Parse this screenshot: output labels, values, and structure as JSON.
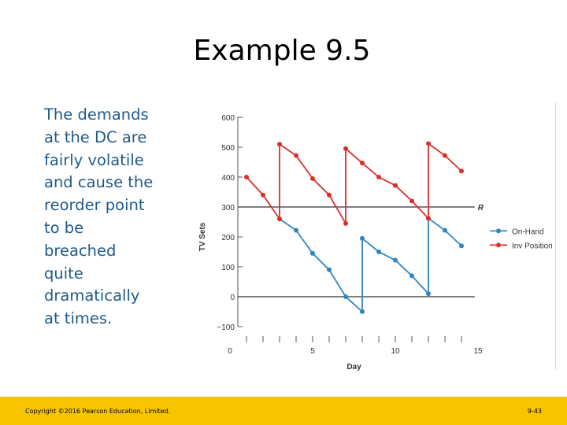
{
  "slide": {
    "title": "Example 9.5",
    "body": "The demands at the DC are fairly volatile and cause the reorder point to be breached quite dramatically at times.",
    "footer_left": "Copyright ©2016 Pearson Education, Limited.",
    "footer_right": "9-43"
  },
  "chart_data": {
    "type": "line",
    "xlabel": "Day",
    "ylabel": "TV Sets",
    "xlim": [
      0,
      15
    ],
    "ylim": [
      -100,
      600
    ],
    "x_ticks": [
      0,
      5,
      10,
      15
    ],
    "y_ticks": [
      600,
      500,
      400,
      300,
      200,
      100,
      0,
      -100
    ],
    "reference_line": {
      "label": "R",
      "value": 300
    },
    "zero_line": 0,
    "legend": [
      "On-Hand",
      "Inv Position"
    ],
    "legend_position": "right",
    "series": [
      {
        "name": "On-Hand",
        "color": "#2e86c1",
        "points": [
          [
            3,
            260
          ],
          [
            4,
            222
          ],
          [
            5,
            145
          ],
          [
            6,
            90
          ],
          [
            7,
            0
          ],
          [
            8,
            -50
          ],
          [
            8,
            195
          ],
          [
            9,
            150
          ],
          [
            10,
            122
          ],
          [
            11,
            70
          ],
          [
            12,
            10
          ],
          [
            12,
            262
          ],
          [
            13,
            222
          ],
          [
            14,
            170
          ]
        ]
      },
      {
        "name": "Inv Position",
        "color": "#d9302c",
        "points": [
          [
            1,
            400
          ],
          [
            2,
            340
          ],
          [
            3,
            260
          ],
          [
            3,
            510
          ],
          [
            4,
            472
          ],
          [
            5,
            395
          ],
          [
            6,
            340
          ],
          [
            7,
            245
          ],
          [
            7,
            495
          ],
          [
            8,
            447
          ],
          [
            9,
            400
          ],
          [
            10,
            372
          ],
          [
            11,
            320
          ],
          [
            12,
            262
          ],
          [
            12,
            512
          ],
          [
            13,
            472
          ],
          [
            14,
            420
          ]
        ]
      }
    ]
  }
}
